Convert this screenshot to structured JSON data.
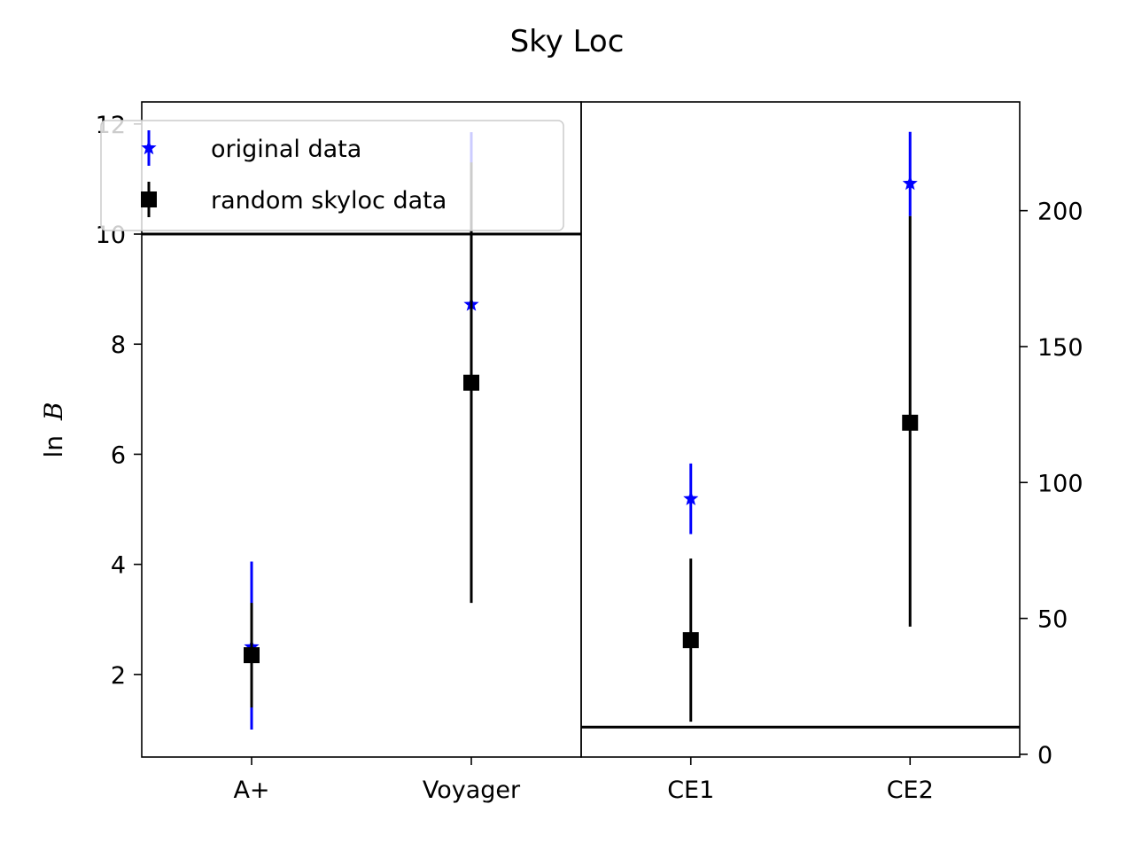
{
  "chart_data": {
    "type": "errorbar",
    "title": "Sky Loc",
    "ylabel": "ln",
    "ylabel_symbol": "B",
    "legend": {
      "placement": "top-left",
      "entries": [
        "original data",
        "random skyloc data"
      ]
    },
    "series_styles": [
      {
        "name": "original data",
        "color": "#0000ff",
        "marker": "star"
      },
      {
        "name": "random skyloc data",
        "color": "#000000",
        "marker": "square"
      }
    ],
    "panels": [
      {
        "categories": [
          "A+",
          "Voyager"
        ],
        "y_axis_side": "left",
        "ylim": [
          0.5,
          12.4
        ],
        "yticks": [
          2,
          4,
          6,
          8,
          10,
          12
        ],
        "reference_line_y": 10,
        "series": [
          {
            "name": "original data",
            "values": [
              2.5,
              8.72
            ],
            "lower": [
              1.0,
              5.6
            ],
            "upper": [
              4.05,
              11.85
            ]
          },
          {
            "name": "random skyloc data",
            "values": [
              2.35,
              7.3
            ],
            "lower": [
              1.4,
              3.3
            ],
            "upper": [
              3.3,
              11.3
            ]
          }
        ]
      },
      {
        "categories": [
          "CE1",
          "CE2"
        ],
        "y_axis_side": "right",
        "ylim": [
          -1,
          240
        ],
        "yticks": [
          0,
          50,
          100,
          150,
          200
        ],
        "reference_line_y": 10,
        "series": [
          {
            "name": "original data",
            "values": [
              94,
              210
            ],
            "lower": [
              81,
              198
            ],
            "upper": [
              107,
              229
            ]
          },
          {
            "name": "random skyloc data",
            "values": [
              42,
              122
            ],
            "lower": [
              12,
              47
            ],
            "upper": [
              72,
              198
            ]
          }
        ]
      }
    ]
  }
}
